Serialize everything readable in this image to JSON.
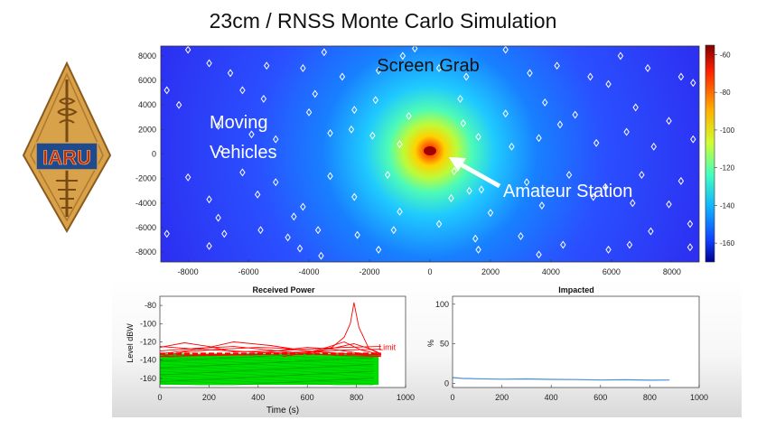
{
  "title": "23cm / RNSS Monte Carlo Simulation",
  "logo": {
    "text": "IARU"
  },
  "heatmap": {
    "annotations": {
      "screen_grab": "Screen Grab",
      "moving_vehicles": [
        "Moving",
        "Vehicles"
      ],
      "amateur_station": "Amateur Station"
    }
  },
  "chart_data": [
    {
      "type": "heatmap",
      "title": "",
      "xlabel": "",
      "ylabel": "",
      "xlim": [
        -8900,
        8900
      ],
      "ylim": [
        -8800,
        8800
      ],
      "x_ticks": [
        "-8000",
        "-6000",
        "-4000",
        "-2000",
        "0",
        "2000",
        "4000",
        "6000",
        "8000"
      ],
      "y_ticks": [
        "8000",
        "6000",
        "4000",
        "2000",
        "0",
        "-2000",
        "-4000",
        "-6000",
        "-8000"
      ],
      "colorbar": {
        "range": [
          -170,
          -55
        ],
        "ticks": [
          "-60",
          "-80",
          "-100",
          "-120",
          "-140",
          "-160"
        ]
      },
      "station": {
        "x": 0,
        "y": 0
      },
      "vehicles": [
        [
          -8000,
          8500
        ],
        [
          -7300,
          7400
        ],
        [
          -6600,
          6600
        ],
        [
          -5400,
          7200
        ],
        [
          -4200,
          7000
        ],
        [
          -3500,
          8300
        ],
        [
          -2900,
          6300
        ],
        [
          -1700,
          6800
        ],
        [
          -900,
          8000
        ],
        [
          -500,
          8600
        ],
        [
          300,
          7000
        ],
        [
          1200,
          6300
        ],
        [
          2500,
          8500
        ],
        [
          3300,
          6600
        ],
        [
          4200,
          7200
        ],
        [
          5300,
          6300
        ],
        [
          6300,
          8000
        ],
        [
          7200,
          7000
        ],
        [
          8300,
          6300
        ],
        [
          8700,
          5800
        ],
        [
          -8700,
          5200
        ],
        [
          -6200,
          5200
        ],
        [
          -5500,
          4500
        ],
        [
          -4000,
          3400
        ],
        [
          -2500,
          3600
        ],
        [
          -1800,
          4400
        ],
        [
          -700,
          3100
        ],
        [
          1000,
          4500
        ],
        [
          2500,
          3300
        ],
        [
          3800,
          4200
        ],
        [
          4800,
          3200
        ],
        [
          6800,
          3800
        ],
        [
          7900,
          2700
        ],
        [
          8700,
          1200
        ],
        [
          -7000,
          2300
        ],
        [
          -5100,
          1200
        ],
        [
          -3300,
          1700
        ],
        [
          -1900,
          1500
        ],
        [
          -1000,
          800
        ],
        [
          1600,
          1400
        ],
        [
          2700,
          600
        ],
        [
          3600,
          1300
        ],
        [
          5500,
          900
        ],
        [
          6500,
          1800
        ],
        [
          7400,
          600
        ],
        [
          -8000,
          -1900
        ],
        [
          -6200,
          -1500
        ],
        [
          -5100,
          -2300
        ],
        [
          -3300,
          -1800
        ],
        [
          -1400,
          -1700
        ],
        [
          800,
          -1400
        ],
        [
          1700,
          -2900
        ],
        [
          3200,
          -2300
        ],
        [
          4600,
          -1700
        ],
        [
          5800,
          -2700
        ],
        [
          7000,
          -1700
        ],
        [
          8300,
          -2200
        ],
        [
          -7300,
          -3700
        ],
        [
          -5700,
          -3300
        ],
        [
          -4200,
          -4300
        ],
        [
          -2500,
          -3500
        ],
        [
          -1000,
          -4700
        ],
        [
          700,
          -3600
        ],
        [
          2000,
          -4800
        ],
        [
          3700,
          -4200
        ],
        [
          5400,
          -3500
        ],
        [
          6700,
          -4000
        ],
        [
          7900,
          -4100
        ],
        [
          8600,
          -5700
        ],
        [
          -8700,
          -6500
        ],
        [
          -6800,
          -6500
        ],
        [
          -5600,
          -6200
        ],
        [
          -4700,
          -6800
        ],
        [
          -3700,
          -6200
        ],
        [
          -2400,
          -6600
        ],
        [
          -1200,
          -6200
        ],
        [
          300,
          -5700
        ],
        [
          1500,
          -6900
        ],
        [
          3000,
          -6700
        ],
        [
          4400,
          -7400
        ],
        [
          5900,
          -7800
        ],
        [
          7300,
          -6300
        ],
        [
          8600,
          -7600
        ],
        [
          -7300,
          -7500
        ],
        [
          -4300,
          -7700
        ],
        [
          -3600,
          -8300
        ],
        [
          -1700,
          -7800
        ],
        [
          1600,
          -7800
        ],
        [
          3600,
          -8200
        ],
        [
          6600,
          -7400
        ],
        [
          -6900,
          400
        ],
        [
          -5900,
          1600
        ],
        [
          -3800,
          4900
        ],
        [
          -2600,
          2000
        ],
        [
          1100,
          2500
        ],
        [
          4300,
          2400
        ],
        [
          5900,
          5700
        ],
        [
          -8300,
          4000
        ],
        [
          -7000,
          -5200
        ],
        [
          -4500,
          -5100
        ],
        [
          1300,
          -3000
        ]
      ]
    },
    {
      "type": "line",
      "title": "Received Power",
      "xlabel": "Time (s)",
      "ylabel": "Level dBW",
      "xlim": [
        0,
        1000
      ],
      "ylim": [
        -170,
        -70
      ],
      "x_ticks": [
        "0",
        "200",
        "400",
        "600",
        "800",
        "1000"
      ],
      "y_ticks": [
        "-80",
        "-100",
        "-120",
        "-140",
        "-160"
      ],
      "limit": {
        "label": "Limit",
        "value": -133
      },
      "series": [
        {
          "x": [
            0,
            100,
            200,
            300,
            450,
            600,
            750,
            900
          ],
          "y": [
            -126,
            -121,
            -125,
            -131,
            -130,
            -128,
            -126,
            -125
          ]
        },
        {
          "x": [
            0,
            100,
            200,
            300,
            450,
            600,
            800,
            900
          ],
          "y": [
            -133,
            -130,
            -126,
            -120,
            -124,
            -130,
            -134,
            -136
          ]
        },
        {
          "x": [
            0,
            100,
            250,
            400,
            500,
            600,
            750,
            900
          ],
          "y": [
            -136,
            -131,
            -128,
            -126,
            -127,
            -130,
            -133,
            -134
          ]
        },
        {
          "x": [
            0,
            150,
            300,
            450,
            600,
            750,
            900
          ],
          "y": [
            -125,
            -128,
            -130,
            -132,
            -131,
            -129,
            -128
          ]
        },
        {
          "x": [
            0,
            150,
            300,
            450,
            600,
            750,
            900
          ],
          "y": [
            -130,
            -127,
            -125,
            -129,
            -133,
            -135,
            -136
          ]
        },
        {
          "x": [
            0,
            200,
            400,
            500,
            600,
            700,
            800,
            900
          ],
          "y": [
            -136,
            -134,
            -133,
            -129,
            -126,
            -128,
            -132,
            -135
          ]
        },
        {
          "x": [
            0,
            200,
            400,
            600,
            680,
            750,
            820,
            900
          ],
          "y": [
            -136,
            -135,
            -134,
            -132,
            -126,
            -120,
            -129,
            -134
          ]
        },
        {
          "x": [
            600,
            700,
            750,
            775,
            790,
            810,
            850,
            900
          ],
          "y": [
            -134,
            -126,
            -115,
            -100,
            -77,
            -104,
            -127,
            -134
          ]
        },
        {
          "x": [
            500,
            620,
            720,
            790,
            860,
            900
          ],
          "y": [
            -136,
            -131,
            -126,
            -122,
            -128,
            -133
          ]
        }
      ],
      "dense_band": {
        "x_range": [
          0,
          890
        ],
        "y_range": [
          -167,
          -133
        ]
      }
    },
    {
      "type": "line",
      "title": "Impacted",
      "xlabel": "",
      "ylabel": "%",
      "xlim": [
        0,
        1000
      ],
      "ylim": [
        -5,
        110
      ],
      "x_ticks": [
        "0",
        "200",
        "400",
        "600",
        "800",
        "1000"
      ],
      "y_ticks": [
        "100",
        "50",
        "0"
      ],
      "series": [
        {
          "x": [
            0,
            40,
            100,
            200,
            300,
            400,
            500,
            600,
            700,
            800,
            880
          ],
          "y": [
            7.5,
            6.5,
            6,
            5.5,
            5.8,
            5.3,
            5,
            4.5,
            4.8,
            4.2,
            4.5
          ]
        }
      ]
    }
  ],
  "colors": {
    "heatmap_low": "#2a2cff",
    "heatmap_high": "#c80000",
    "received_hi": "#ff0000",
    "received_lo": "#00dd00",
    "impacted_line": "#4a8fd8",
    "logo_gold": "#d8a24a",
    "logo_red": "#c02a1e",
    "logo_blue": "#1f4a8e"
  }
}
